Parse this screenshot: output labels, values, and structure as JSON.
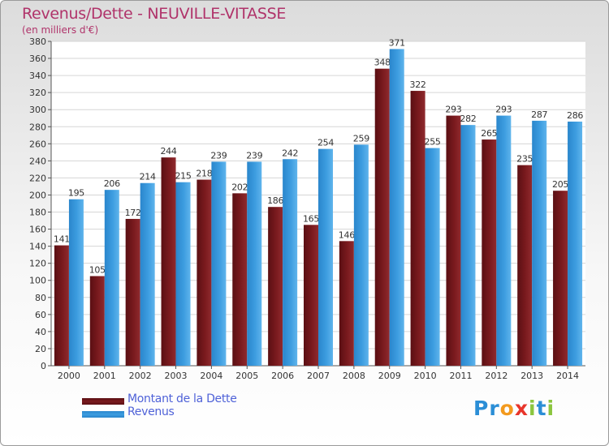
{
  "header": {
    "title": "Revenus/Dette - NEUVILLE-VITASSE",
    "subtitle": "(en milliers d'€)"
  },
  "colors": {
    "dette": "#7a1a1e",
    "revenus": "#3d9de0"
  },
  "legend": {
    "dette_label": "Montant de la Dette",
    "revenus_label": "Revenus"
  },
  "logo": {
    "letters": [
      "P",
      "r",
      "o",
      "x",
      "i",
      "t",
      "i"
    ],
    "letter_colors": [
      "#2b8ed6",
      "#2b8ed6",
      "#f39a1e",
      "#e8352b",
      "#8cc63f",
      "#2b8ed6",
      "#8cc63f"
    ]
  },
  "chart_data": {
    "type": "bar",
    "title": "Revenus/Dette - NEUVILLE-VITASSE",
    "subtitle": "(en milliers d'€)",
    "categories": [
      "2000",
      "2001",
      "2002",
      "2003",
      "2004",
      "2005",
      "2006",
      "2007",
      "2008",
      "2009",
      "2010",
      "2011",
      "2012",
      "2013",
      "2014"
    ],
    "series": [
      {
        "name": "Montant de la Dette",
        "values": [
          141,
          105,
          172,
          244,
          218,
          202,
          186,
          165,
          146,
          348,
          322,
          293,
          265,
          235,
          205
        ]
      },
      {
        "name": "Revenus",
        "values": [
          195,
          206,
          214,
          215,
          239,
          239,
          242,
          254,
          259,
          371,
          255,
          282,
          293,
          287,
          286
        ]
      }
    ],
    "ylim": [
      0,
      380
    ],
    "ytick_step": 20,
    "grid": true,
    "legend_position": "bottom-left"
  }
}
